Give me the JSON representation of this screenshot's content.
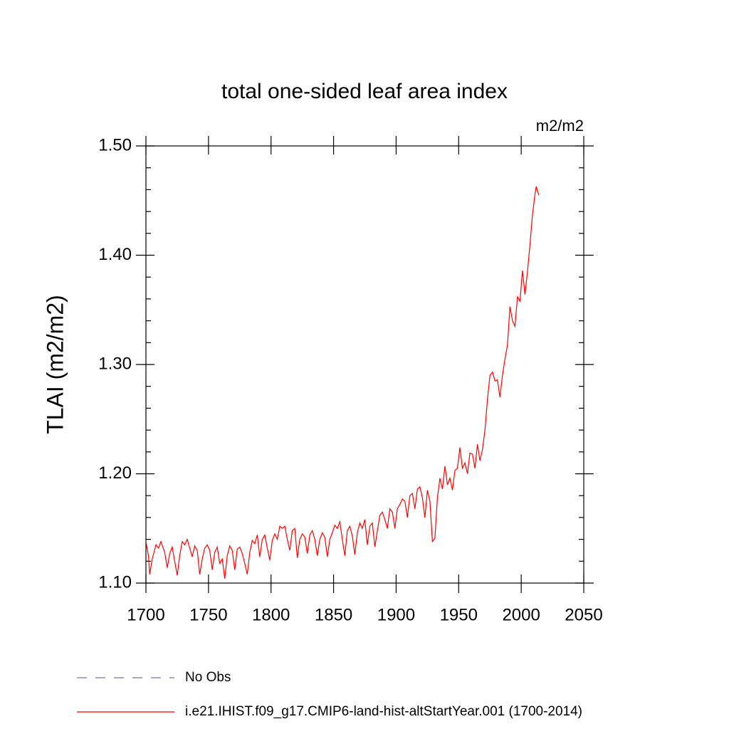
{
  "chart_data": {
    "type": "line",
    "title": "total one-sided leaf area index",
    "units": "m2/m2",
    "y_label": "TLAI  (m2/m2)",
    "xlim": [
      1700,
      2050
    ],
    "xticks": [
      1700,
      1750,
      1800,
      1850,
      1900,
      1950,
      2000,
      2050
    ],
    "ylim": [
      1.1,
      1.5
    ],
    "yticks": [
      {
        "value": 1.1,
        "label": "1.10"
      },
      {
        "value": 1.2,
        "label": "1.20"
      },
      {
        "value": 1.3,
        "label": "1.30"
      },
      {
        "value": 1.4,
        "label": "1.40"
      },
      {
        "value": 1.5,
        "label": "1.50"
      }
    ],
    "yminorticks": [
      1.12,
      1.14,
      1.16,
      1.18,
      1.22,
      1.24,
      1.26,
      1.28,
      1.32,
      1.34,
      1.36,
      1.38,
      1.42,
      1.44,
      1.46,
      1.48
    ],
    "grid": false,
    "series": [
      {
        "name": "No Obs",
        "color": "#7b6bc4",
        "dashed": true,
        "x": [],
        "values": []
      },
      {
        "name": "i.e21.IHIST.f09_g17.CMIP6-land-hist-altStartYear.001 (1700-2014)",
        "color": "#ff0000",
        "dashed": false,
        "x": [
          1700,
          1702,
          1703,
          1705,
          1708,
          1710,
          1712,
          1715,
          1717,
          1719,
          1721,
          1723,
          1725,
          1727,
          1729,
          1731,
          1733,
          1735,
          1737,
          1739,
          1741,
          1743,
          1745,
          1747,
          1749,
          1751,
          1753,
          1755,
          1757,
          1759,
          1761,
          1763,
          1765,
          1767,
          1769,
          1771,
          1773,
          1775,
          1777,
          1779,
          1781,
          1783,
          1785,
          1787,
          1789,
          1791,
          1793,
          1795,
          1797,
          1799,
          1801,
          1803,
          1805,
          1807,
          1809,
          1811,
          1813,
          1815,
          1817,
          1819,
          1821,
          1823,
          1825,
          1827,
          1829,
          1831,
          1833,
          1835,
          1837,
          1839,
          1841,
          1843,
          1845,
          1847,
          1849,
          1851,
          1853,
          1855,
          1857,
          1859,
          1861,
          1863,
          1865,
          1867,
          1869,
          1871,
          1873,
          1875,
          1877,
          1879,
          1881,
          1883,
          1885,
          1887,
          1889,
          1891,
          1893,
          1895,
          1897,
          1899,
          1901,
          1903,
          1905,
          1907,
          1909,
          1911,
          1913,
          1915,
          1917,
          1919,
          1921,
          1923,
          1925,
          1927,
          1929,
          1931,
          1933,
          1935,
          1937,
          1939,
          1941,
          1943,
          1945,
          1947,
          1949,
          1951,
          1953,
          1955,
          1957,
          1959,
          1961,
          1963,
          1965,
          1967,
          1969,
          1971,
          1973,
          1975,
          1977,
          1979,
          1981,
          1983,
          1985,
          1987,
          1989,
          1991,
          1993,
          1995,
          1997,
          1999,
          2001,
          2003,
          2005,
          2007,
          2009,
          2011,
          2012,
          2014
        ],
        "values": [
          1.138,
          1.125,
          1.108,
          1.122,
          1.135,
          1.132,
          1.138,
          1.128,
          1.114,
          1.127,
          1.133,
          1.12,
          1.107,
          1.125,
          1.138,
          1.135,
          1.14,
          1.132,
          1.124,
          1.134,
          1.13,
          1.108,
          1.122,
          1.132,
          1.135,
          1.13,
          1.112,
          1.128,
          1.133,
          1.118,
          1.122,
          1.104,
          1.125,
          1.134,
          1.13,
          1.112,
          1.131,
          1.133,
          1.127,
          1.118,
          1.108,
          1.128,
          1.139,
          1.136,
          1.144,
          1.124,
          1.14,
          1.144,
          1.132,
          1.121,
          1.139,
          1.145,
          1.14,
          1.152,
          1.15,
          1.152,
          1.14,
          1.13,
          1.148,
          1.15,
          1.123,
          1.14,
          1.145,
          1.142,
          1.127,
          1.144,
          1.148,
          1.14,
          1.125,
          1.14,
          1.146,
          1.142,
          1.124,
          1.14,
          1.146,
          1.153,
          1.15,
          1.156,
          1.14,
          1.125,
          1.148,
          1.152,
          1.143,
          1.126,
          1.146,
          1.155,
          1.15,
          1.158,
          1.135,
          1.152,
          1.155,
          1.133,
          1.148,
          1.162,
          1.165,
          1.158,
          1.15,
          1.168,
          1.165,
          1.15,
          1.168,
          1.172,
          1.177,
          1.175,
          1.16,
          1.18,
          1.182,
          1.168,
          1.186,
          1.188,
          1.178,
          1.16,
          1.185,
          1.175,
          1.138,
          1.141,
          1.178,
          1.196,
          1.186,
          1.207,
          1.19,
          1.196,
          1.185,
          1.203,
          1.205,
          1.224,
          1.205,
          1.21,
          1.2,
          1.219,
          1.218,
          1.205,
          1.227,
          1.212,
          1.222,
          1.24,
          1.268,
          1.29,
          1.293,
          1.285,
          1.286,
          1.27,
          1.29,
          1.305,
          1.318,
          1.353,
          1.34,
          1.335,
          1.362,
          1.358,
          1.386,
          1.364,
          1.385,
          1.41,
          1.437,
          1.456,
          1.463,
          1.455
        ]
      }
    ]
  }
}
